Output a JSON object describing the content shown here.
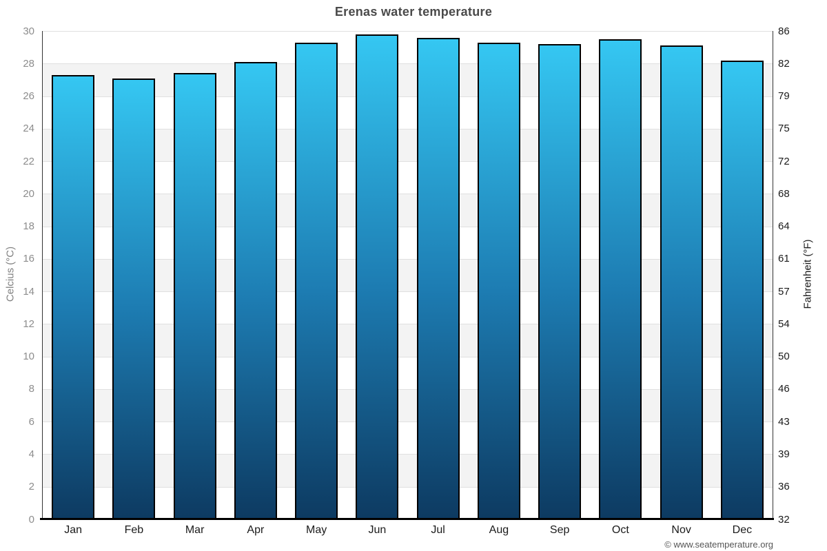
{
  "title": "Erenas water temperature",
  "footer": {
    "copyright": "© www.seatemperature.org"
  },
  "chart_data": {
    "type": "bar",
    "title": "Erenas water temperature",
    "categories": [
      "Jan",
      "Feb",
      "Mar",
      "Apr",
      "May",
      "Jun",
      "Jul",
      "Aug",
      "Sep",
      "Oct",
      "Nov",
      "Dec"
    ],
    "values": [
      27.3,
      27.1,
      27.4,
      28.1,
      29.3,
      29.8,
      29.6,
      29.3,
      29.2,
      29.5,
      29.1,
      28.2
    ],
    "ylabel_left": "Celcius (°C)",
    "ylabel_right": "Fahrenheit (°F)",
    "ylim": [
      0,
      30
    ],
    "yticks_left": [
      30,
      28,
      26,
      24,
      22,
      20,
      18,
      16,
      14,
      12,
      10,
      8,
      6,
      4,
      2,
      0
    ],
    "yticks_right": [
      86,
      82,
      79,
      75,
      72,
      68,
      64,
      61,
      57,
      54,
      50,
      46,
      43,
      39,
      36,
      32
    ],
    "grid": "horizontal",
    "legend": false,
    "colors": {
      "bar_top": "#35c7f2",
      "bar_mid": "#1d7cb2",
      "bar_bottom": "#0d3a61",
      "bar_border": "#000000",
      "band": "#f3f3f3",
      "gridline": "#e0e0e0",
      "axis_line": "#333333",
      "baseline": "#000000",
      "left_tick_text": "#8c8c8c",
      "right_tick_text": "#1a1a1a",
      "xtick_text": "#1a1a1a",
      "ylabel_left_text": "#808080",
      "ylabel_right_text": "#1a1a1a"
    }
  }
}
